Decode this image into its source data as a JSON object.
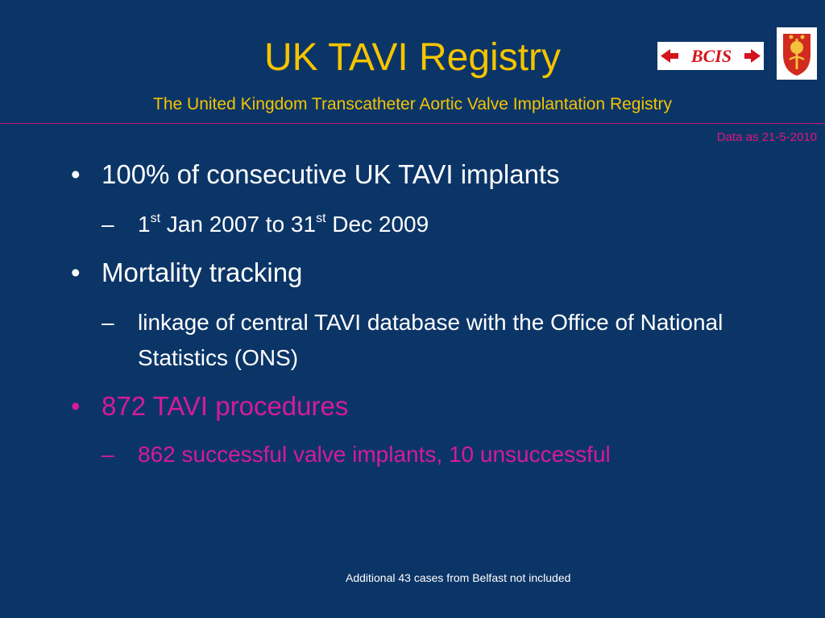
{
  "header": {
    "title": "UK TAVI Registry",
    "subtitle": "The United Kingdom Transcatheter Aortic Valve Implantation Registry",
    "date_note": "Data as 21-5-2010",
    "bcis_logo_text": "BCIS"
  },
  "bullets": [
    {
      "text": "100% of consecutive UK TAVI implants",
      "sub": {
        "prefix": "1",
        "sup1": "st",
        "middle": " Jan 2007 to 31",
        "sup2": "st",
        "suffix": " Dec 2009"
      }
    },
    {
      "text": "Mortality tracking",
      "sub": "linkage of central TAVI database with the Office of National Statistics (ONS)"
    },
    {
      "text": "872 TAVI procedures",
      "sub": "862 successful valve implants, 10 unsuccessful"
    }
  ],
  "footer": {
    "note": "Additional 43 cases from Belfast not included"
  },
  "colors": {
    "background": "#0c3567",
    "title": "#f5c400",
    "accent_magenta": "#d61a9b",
    "rule": "#c0177a"
  },
  "icons": {
    "bcis": "bcis-logo",
    "crest": "crest-logo"
  }
}
